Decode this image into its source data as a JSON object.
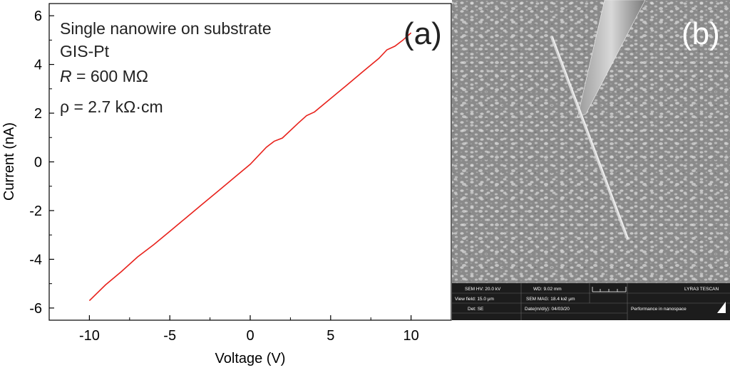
{
  "chart_data": {
    "type": "line",
    "xlabel": "Voltage (V)",
    "ylabel": "Current (nA)",
    "xlim": [
      -12.5,
      12.5
    ],
    "ylim": [
      -6.5,
      6.5
    ],
    "x_ticks": [
      "-10",
      "-5",
      "0",
      "5",
      "10"
    ],
    "y_ticks": [
      "-6",
      "-4",
      "-2",
      "0",
      "2",
      "4",
      "6"
    ],
    "grid": false,
    "series": [
      {
        "color": "#e8221c",
        "x": [
          -10,
          -9,
          -8,
          -7,
          -6,
          -5,
          -4,
          -3,
          -2,
          -1,
          0,
          1,
          1.5,
          2,
          3,
          3.5,
          4,
          5,
          6,
          7,
          8,
          8.5,
          9,
          9.5,
          10
        ],
        "y": [
          -5.7,
          -5.05,
          -4.5,
          -3.9,
          -3.4,
          -2.85,
          -2.3,
          -1.75,
          -1.2,
          -0.65,
          -0.1,
          0.6,
          0.85,
          0.98,
          1.6,
          1.9,
          2.05,
          2.6,
          3.15,
          3.7,
          4.25,
          4.6,
          4.75,
          5.0,
          5.3
        ]
      }
    ],
    "annotations": {
      "line1": "Single nanowire on substrate",
      "line2": "GIS-Pt",
      "line3_symbol": "R",
      "line3_rest": " = 600 MΩ",
      "line4": "ρ = 2.7 kΩ·cm"
    },
    "panel_label": "(a)"
  },
  "sem_image": {
    "panel_label": "(b)",
    "info_bar": {
      "hv": "SEM HV: 20.0 kV",
      "wd": "WD: 9.02 mm",
      "brand": "LYRA3 TESCAN",
      "view_field": "View field: 15.0 μm",
      "mag": "SEM MAG: 18.4 kx",
      "scale": "2 μm",
      "det": "Det: SE",
      "date": "Date(m/d/y): 04/03/20",
      "tagline": "Performance in nanospace"
    }
  }
}
